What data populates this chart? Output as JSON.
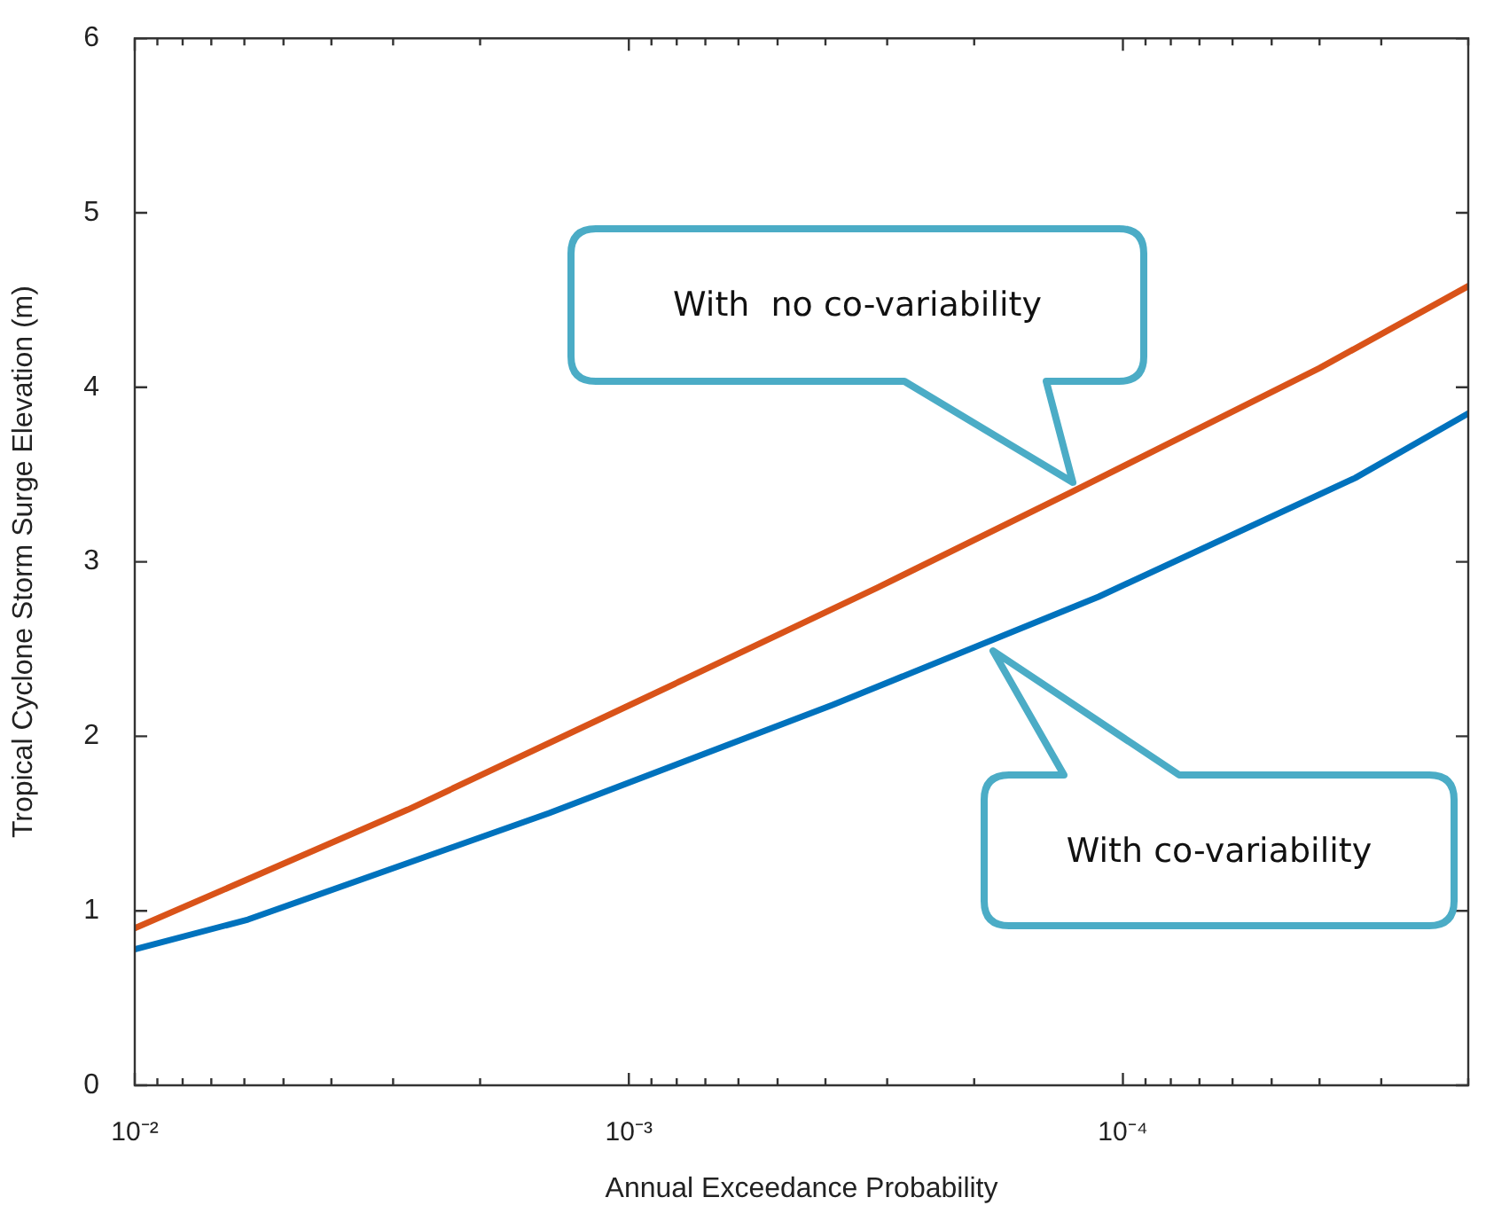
{
  "chart_data": {
    "type": "line",
    "xlabel": "Annual Exceedance Probability",
    "ylabel": "Tropical Cyclone Storm Surge Elevation (m)",
    "log": "x",
    "xlim": [
      0.01,
      2e-05
    ],
    "ylim": [
      0,
      6
    ],
    "yticks": [
      0,
      1,
      2,
      3,
      4,
      5,
      6
    ],
    "xticks": [
      {
        "value": 0.01,
        "label": "10⁻²"
      },
      {
        "value": 0.009,
        "label": null
      },
      {
        "value": 0.008,
        "label": null
      },
      {
        "value": 0.007,
        "label": null
      },
      {
        "value": 0.006,
        "label": null
      },
      {
        "value": 0.005,
        "label": null
      },
      {
        "value": 0.004,
        "label": null
      },
      {
        "value": 0.003,
        "label": null
      },
      {
        "value": 0.002,
        "label": null
      },
      {
        "value": 0.001,
        "label": "10⁻³"
      },
      {
        "value": 0.0009,
        "label": null
      },
      {
        "value": 0.0008,
        "label": null
      },
      {
        "value": 0.0007,
        "label": null
      },
      {
        "value": 0.0006,
        "label": null
      },
      {
        "value": 0.0005,
        "label": null
      },
      {
        "value": 0.0004,
        "label": null
      },
      {
        "value": 0.0003,
        "label": null
      },
      {
        "value": 0.0002,
        "label": null
      },
      {
        "value": 0.0001,
        "label": "10⁻⁴"
      },
      {
        "value": 9e-05,
        "label": null
      },
      {
        "value": 8e-05,
        "label": null
      },
      {
        "value": 7e-05,
        "label": null
      },
      {
        "value": 6e-05,
        "label": null
      },
      {
        "value": 5e-05,
        "label": null
      },
      {
        "value": 4e-05,
        "label": null
      },
      {
        "value": 3e-05,
        "label": null
      },
      {
        "value": 2e-05,
        "label": null
      }
    ],
    "grid": false,
    "legend": false,
    "marker": "none",
    "line_style": "solid",
    "series": [
      {
        "color": "#d95319",
        "x": [
          0.01,
          0.0028,
          0.00096,
          0.000315,
          0.000127,
          4e-05,
          2e-05
        ],
        "values": [
          0.9,
          1.58,
          2.2,
          2.85,
          3.4,
          4.11,
          4.58
        ]
      },
      {
        "color": "#0072bd",
        "x": [
          0.01,
          0.0059,
          0.00145,
          0.000387,
          0.000112,
          3.39e-05,
          2e-05
        ],
        "values": [
          0.78,
          0.95,
          1.56,
          2.18,
          2.8,
          3.48,
          3.85
        ]
      }
    ],
    "annotations": [
      "With  no co-variability",
      "With co-variability"
    ]
  }
}
